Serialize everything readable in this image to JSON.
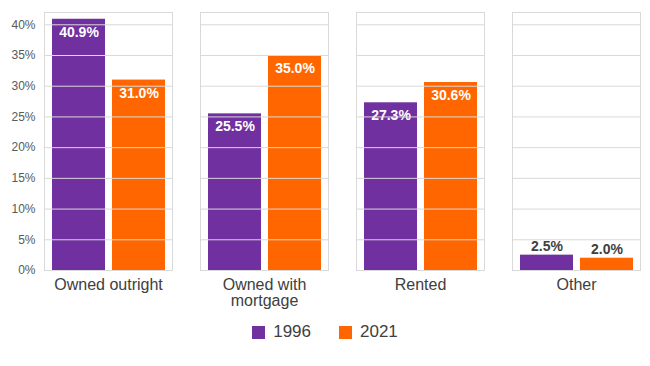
{
  "chart_data": {
    "type": "bar",
    "categories": [
      "Owned outright",
      "Owned with mortgage",
      "Rented",
      "Other"
    ],
    "series": [
      {
        "name": "1996",
        "color": "#7030a0",
        "values": [
          40.9,
          25.5,
          27.3,
          2.5
        ],
        "value_labels": [
          "40.9%",
          "25.5%",
          "27.3%",
          "2.5%"
        ]
      },
      {
        "name": "2021",
        "color": "#ff6600",
        "values": [
          31.0,
          35.0,
          30.6,
          2.0
        ],
        "value_labels": [
          "31.0%",
          "35.0%",
          "30.6%",
          "2.0%"
        ]
      }
    ],
    "ylim": [
      0,
      42
    ],
    "yticks": [
      {
        "value": 0,
        "label": "0%"
      },
      {
        "value": 5,
        "label": "5%"
      },
      {
        "value": 10,
        "label": "10%"
      },
      {
        "value": 15,
        "label": "15%"
      },
      {
        "value": 20,
        "label": "20%"
      },
      {
        "value": 25,
        "label": "25%"
      },
      {
        "value": 30,
        "label": "30%"
      },
      {
        "value": 35,
        "label": "35%"
      },
      {
        "value": 40,
        "label": "40%"
      }
    ],
    "grid": true,
    "data_labels": true,
    "legend": "bottom"
  }
}
